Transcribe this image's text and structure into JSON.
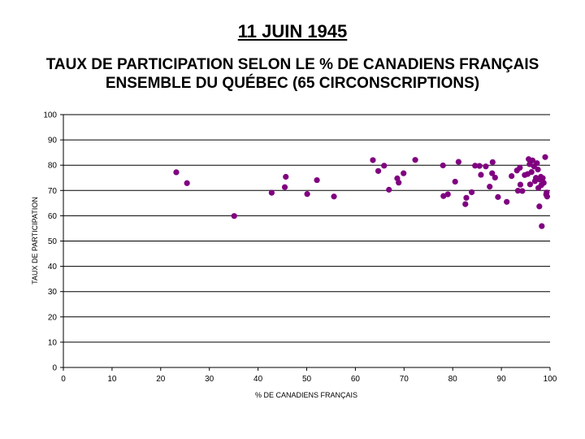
{
  "header": {
    "date": "11 JUIN 1945",
    "title_line1": "TAUX DE PARTICIPATION SELON LE % DE CANADIENS FRANÇAIS",
    "title_line2": "ENSEMBLE DU QUÉBEC (65 CIRCONSCRIPTIONS)"
  },
  "chart_data": {
    "type": "scatter",
    "xlabel": "% DE CANADIENS FRANÇAIS",
    "ylabel": "TAUX DE PARTICIPATION",
    "xlim": [
      0,
      100
    ],
    "ylim": [
      0,
      100
    ],
    "xticks": [
      "0",
      "10",
      "20",
      "30",
      "40",
      "50",
      "60",
      "70",
      "80",
      "90",
      "100"
    ],
    "yticks": [
      "0",
      "10",
      "20",
      "30",
      "40",
      "50",
      "60",
      "70",
      "80",
      "90",
      "100"
    ],
    "grid": "horizontal",
    "marker_color": "#800080",
    "points": [
      {
        "x": 23.2,
        "y": 77.2
      },
      {
        "x": 25.4,
        "y": 72.9
      },
      {
        "x": 35.1,
        "y": 59.9
      },
      {
        "x": 42.8,
        "y": 69.1
      },
      {
        "x": 45.5,
        "y": 71.3
      },
      {
        "x": 45.7,
        "y": 75.4
      },
      {
        "x": 50.1,
        "y": 68.6
      },
      {
        "x": 52.1,
        "y": 74.1
      },
      {
        "x": 55.6,
        "y": 67.6
      },
      {
        "x": 63.6,
        "y": 82.0
      },
      {
        "x": 64.7,
        "y": 77.7
      },
      {
        "x": 65.9,
        "y": 79.8
      },
      {
        "x": 66.9,
        "y": 70.3
      },
      {
        "x": 68.6,
        "y": 74.8
      },
      {
        "x": 68.9,
        "y": 73.1
      },
      {
        "x": 69.9,
        "y": 76.8
      },
      {
        "x": 72.3,
        "y": 82.1
      },
      {
        "x": 78.0,
        "y": 79.9
      },
      {
        "x": 78.1,
        "y": 67.8
      },
      {
        "x": 79.0,
        "y": 68.5
      },
      {
        "x": 80.5,
        "y": 73.5
      },
      {
        "x": 81.2,
        "y": 81.3
      },
      {
        "x": 82.6,
        "y": 64.6
      },
      {
        "x": 82.8,
        "y": 67.1
      },
      {
        "x": 83.9,
        "y": 69.3
      },
      {
        "x": 84.6,
        "y": 79.8
      },
      {
        "x": 85.5,
        "y": 79.7
      },
      {
        "x": 85.8,
        "y": 76.2
      },
      {
        "x": 86.8,
        "y": 79.5
      },
      {
        "x": 87.6,
        "y": 71.5
      },
      {
        "x": 88.1,
        "y": 76.8
      },
      {
        "x": 88.2,
        "y": 81.2
      },
      {
        "x": 88.7,
        "y": 75.1
      },
      {
        "x": 89.3,
        "y": 67.4
      },
      {
        "x": 91.1,
        "y": 65.5
      },
      {
        "x": 92.1,
        "y": 75.7
      },
      {
        "x": 93.2,
        "y": 77.9
      },
      {
        "x": 93.4,
        "y": 69.9
      },
      {
        "x": 93.8,
        "y": 79.0
      },
      {
        "x": 93.9,
        "y": 72.3
      },
      {
        "x": 94.3,
        "y": 69.8
      },
      {
        "x": 94.8,
        "y": 76.1
      },
      {
        "x": 95.4,
        "y": 76.5
      },
      {
        "x": 95.6,
        "y": 82.4
      },
      {
        "x": 95.8,
        "y": 80.4
      },
      {
        "x": 95.9,
        "y": 72.4
      },
      {
        "x": 96.2,
        "y": 77.3
      },
      {
        "x": 96.4,
        "y": 81.9
      },
      {
        "x": 96.7,
        "y": 79.5
      },
      {
        "x": 96.9,
        "y": 73.7
      },
      {
        "x": 97.1,
        "y": 75.0
      },
      {
        "x": 97.3,
        "y": 80.8
      },
      {
        "x": 97.5,
        "y": 78.3
      },
      {
        "x": 97.6,
        "y": 71.0
      },
      {
        "x": 97.8,
        "y": 63.7
      },
      {
        "x": 97.9,
        "y": 74.3
      },
      {
        "x": 98.1,
        "y": 75.4
      },
      {
        "x": 98.2,
        "y": 72.1
      },
      {
        "x": 98.3,
        "y": 55.9
      },
      {
        "x": 98.5,
        "y": 74.9
      },
      {
        "x": 98.7,
        "y": 73.0
      },
      {
        "x": 99.0,
        "y": 83.2
      },
      {
        "x": 99.2,
        "y": 68.4
      },
      {
        "x": 99.3,
        "y": 69.2
      },
      {
        "x": 99.4,
        "y": 67.6
      }
    ]
  }
}
